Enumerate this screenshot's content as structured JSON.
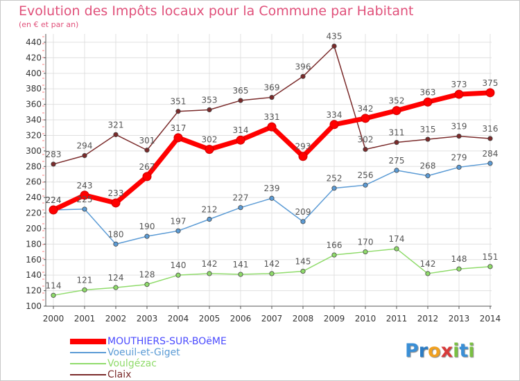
{
  "header": {
    "title": "Evolution des Impôts locaux pour la Commune par Habitant",
    "subtitle": "(en € et par an)"
  },
  "colors": {
    "title": "#e0507a",
    "axis": "#555555",
    "grid": "#e0e0e0"
  },
  "logo": {
    "text": "Proxiti",
    "letters": [
      {
        "ch": "P",
        "color": "#3a8fd6"
      },
      {
        "ch": "r",
        "color": "#2c7cc4"
      },
      {
        "ch": "o",
        "color": "#f0a020"
      },
      {
        "ch": "x",
        "color": "#d83a3a"
      },
      {
        "ch": "i",
        "color": "#7ac043"
      },
      {
        "ch": "t",
        "color": "#3a8fd6"
      },
      {
        "ch": "i",
        "color": "#7ac043"
      }
    ]
  },
  "chart_data": {
    "type": "line",
    "title": "Evolution des Impôts locaux pour la Commune par Habitant",
    "subtitle": "(en € et par an)",
    "x": [
      "2000",
      "2001",
      "2002",
      "2003",
      "2004",
      "2005",
      "2006",
      "2007",
      "2008",
      "2009",
      "2010",
      "2011",
      "2012",
      "2013",
      "2014"
    ],
    "y_ticks": [
      100,
      120,
      140,
      160,
      180,
      200,
      220,
      240,
      260,
      280,
      300,
      320,
      340,
      360,
      380,
      400,
      420,
      440
    ],
    "ylim": [
      100,
      440
    ],
    "grid": true,
    "legend_position": "bottom-left",
    "series": [
      {
        "name": "MOUTHIERS-SUR-BOëME",
        "color": "#ff0000",
        "label_color": "#4a4aff",
        "width": 7,
        "values": [
          224,
          243,
          233,
          267,
          317,
          302,
          314,
          331,
          293,
          334,
          342,
          352,
          363,
          373,
          375
        ]
      },
      {
        "name": "Voeuil-et-Giget",
        "color": "#5b9bd5",
        "label_color": "#5b9bd5",
        "width": 1.5,
        "values": [
          224,
          225,
          180,
          190,
          197,
          212,
          227,
          239,
          209,
          252,
          256,
          275,
          268,
          279,
          284
        ]
      },
      {
        "name": "Voulgézac",
        "color": "#8fdb6a",
        "label_color": "#8fdb6a",
        "width": 1.5,
        "values": [
          114,
          121,
          124,
          128,
          140,
          142,
          141,
          142,
          145,
          166,
          170,
          174,
          142,
          148,
          151
        ]
      },
      {
        "name": "Claix",
        "color": "#7a2a2a",
        "label_color": "#7a2a2a",
        "width": 1.5,
        "values": [
          283,
          294,
          321,
          301,
          351,
          353,
          365,
          369,
          396,
          435,
          302,
          311,
          315,
          319,
          316
        ]
      }
    ]
  }
}
